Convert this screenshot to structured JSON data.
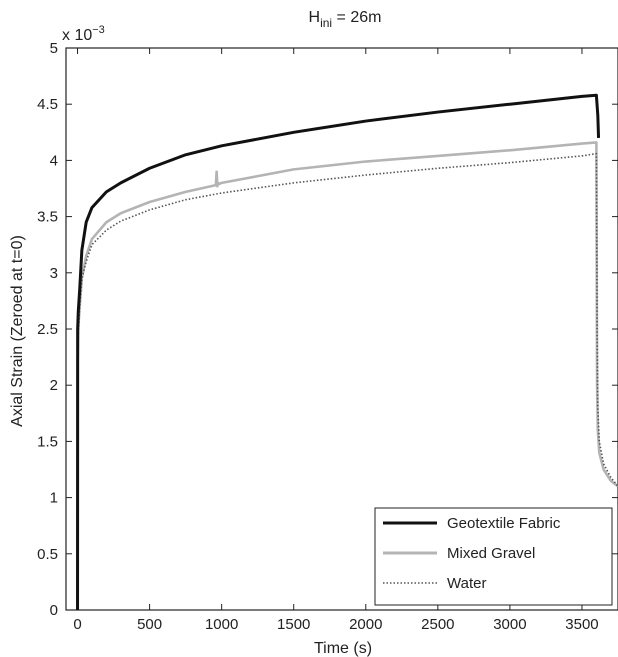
{
  "chart_data": {
    "type": "line",
    "title_main": "H",
    "title_sub": "ini",
    "title_rest": " = 26m",
    "xlabel": "Time (s)",
    "ylabel": "Axial Strain (Zeroed at t=0)",
    "y_multiplier_base": "x 10",
    "y_multiplier_exp": "−3",
    "xlim": [
      -80,
      3750
    ],
    "ylim": [
      0,
      5
    ],
    "x_ticks": [
      0,
      500,
      1000,
      1500,
      2000,
      2500,
      3000,
      3500
    ],
    "y_ticks": [
      0,
      0.5,
      1,
      1.5,
      2,
      2.5,
      3,
      3.5,
      4,
      4.5,
      5
    ],
    "grid": false,
    "legend_position": "bottom-right",
    "series": [
      {
        "name": "Geotextile Fabric",
        "color": "#111111",
        "style": "solid",
        "x": [
          0,
          1,
          5,
          15,
          30,
          60,
          100,
          200,
          300,
          500,
          750,
          1000,
          1500,
          2000,
          2500,
          3000,
          3500,
          3600,
          3610,
          3615
        ],
        "y": [
          0,
          2.5,
          2.65,
          2.85,
          3.2,
          3.45,
          3.58,
          3.72,
          3.8,
          3.93,
          4.05,
          4.13,
          4.25,
          4.35,
          4.43,
          4.5,
          4.57,
          4.58,
          4.4,
          4.2
        ]
      },
      {
        "name": "Mixed Gravel",
        "color": "#b4b4b4",
        "style": "solid",
        "x": [
          0,
          1,
          5,
          15,
          30,
          60,
          100,
          200,
          300,
          500,
          750,
          960,
          965,
          970,
          975,
          980,
          1000,
          1500,
          2000,
          2500,
          3000,
          3500,
          3600,
          3605,
          3610,
          3620,
          3650,
          3700,
          3750
        ],
        "y": [
          0,
          2.2,
          2.5,
          2.7,
          2.95,
          3.15,
          3.3,
          3.45,
          3.53,
          3.63,
          3.72,
          3.78,
          3.9,
          3.77,
          3.8,
          3.79,
          3.8,
          3.92,
          3.99,
          4.04,
          4.09,
          4.15,
          4.16,
          2.0,
          1.6,
          1.4,
          1.25,
          1.15,
          1.1
        ]
      },
      {
        "name": "Water",
        "color": "#555555",
        "style": "dotted",
        "x": [
          0,
          1,
          5,
          15,
          30,
          60,
          100,
          200,
          300,
          500,
          750,
          1000,
          1500,
          2000,
          2500,
          3000,
          3500,
          3600,
          3605,
          3610,
          3620,
          3650,
          3700,
          3750
        ],
        "y": [
          0,
          2.1,
          2.45,
          2.7,
          2.95,
          3.1,
          3.25,
          3.38,
          3.46,
          3.56,
          3.65,
          3.71,
          3.8,
          3.87,
          3.93,
          3.98,
          4.04,
          4.06,
          2.5,
          1.8,
          1.5,
          1.3,
          1.18,
          1.1
        ]
      }
    ]
  }
}
